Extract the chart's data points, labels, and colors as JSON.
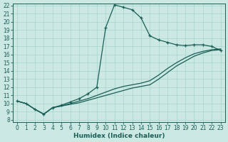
{
  "xlabel": "Humidex (Indice chaleur)",
  "bg_color": "#cce8e3",
  "grid_color": "#a8d4ce",
  "line_color": "#1a5e58",
  "xlim": [
    0,
    23
  ],
  "ylim": [
    8,
    22
  ],
  "xticks": [
    0,
    1,
    2,
    3,
    4,
    5,
    6,
    7,
    8,
    9,
    10,
    11,
    12,
    13,
    14,
    15,
    16,
    17,
    18,
    19,
    20,
    21,
    22,
    23
  ],
  "yticks": [
    8,
    9,
    10,
    11,
    12,
    13,
    14,
    15,
    16,
    17,
    18,
    19,
    20,
    21,
    22
  ],
  "curve1_x": [
    0,
    1,
    2,
    3,
    4,
    5,
    6,
    7,
    8,
    9,
    10,
    11,
    12,
    13,
    14,
    15,
    16,
    17,
    18,
    19,
    20,
    21,
    22,
    23
  ],
  "curve1_y": [
    10.3,
    10.0,
    9.3,
    8.7,
    9.5,
    9.8,
    10.2,
    10.6,
    11.2,
    12.0,
    19.3,
    22.1,
    21.8,
    21.5,
    20.5,
    18.3,
    17.8,
    17.5,
    17.2,
    17.1,
    17.2,
    17.2,
    17.0,
    16.5
  ],
  "curve2_x": [
    0,
    1,
    2,
    3,
    4,
    5,
    6,
    7,
    8,
    9,
    10,
    11,
    12,
    13,
    14,
    15,
    16,
    17,
    18,
    19,
    20,
    21,
    22,
    23
  ],
  "curve2_y": [
    10.3,
    10.0,
    9.3,
    8.7,
    9.5,
    9.7,
    10.0,
    10.3,
    10.6,
    11.0,
    11.4,
    11.8,
    12.1,
    12.3,
    12.5,
    12.8,
    13.5,
    14.3,
    15.0,
    15.6,
    16.1,
    16.4,
    16.6,
    16.7
  ],
  "curve3_x": [
    0,
    1,
    2,
    3,
    4,
    5,
    6,
    7,
    8,
    9,
    10,
    11,
    12,
    13,
    14,
    15,
    16,
    17,
    18,
    19,
    20,
    21,
    22,
    23
  ],
  "curve3_y": [
    10.3,
    10.0,
    9.3,
    8.7,
    9.5,
    9.7,
    9.9,
    10.1,
    10.4,
    10.7,
    11.0,
    11.3,
    11.6,
    11.9,
    12.1,
    12.3,
    13.0,
    13.8,
    14.6,
    15.2,
    15.8,
    16.2,
    16.5,
    16.6
  ]
}
